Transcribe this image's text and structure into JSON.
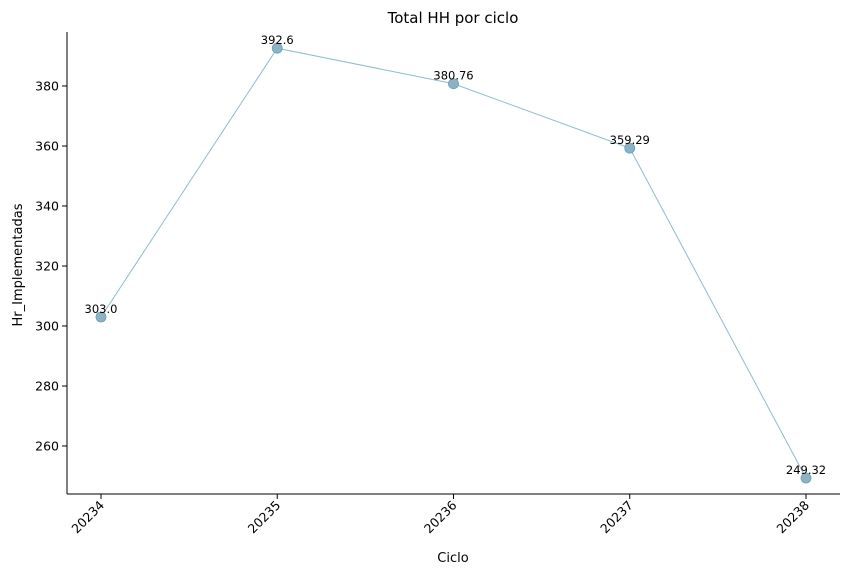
{
  "chart_data": {
    "type": "line",
    "title": "Total HH por ciclo",
    "xlabel": "Ciclo",
    "ylabel": "Hr_Implementadas",
    "categories": [
      "20234",
      "20235",
      "20236",
      "20237",
      "20238"
    ],
    "values": [
      303.0,
      392.6,
      380.76,
      359.29,
      249.32
    ],
    "data_labels": [
      "303.0",
      "392.6",
      "380.76",
      "359.29",
      "249.32"
    ],
    "y_ticks": [
      260,
      280,
      300,
      320,
      340,
      360,
      380
    ],
    "ylim": [
      244,
      398
    ],
    "grid": false,
    "legend": "none",
    "line_color": "#8fbccc",
    "marker_color": "#8ab4c6",
    "marker_edge_color": "#6f9db0"
  }
}
